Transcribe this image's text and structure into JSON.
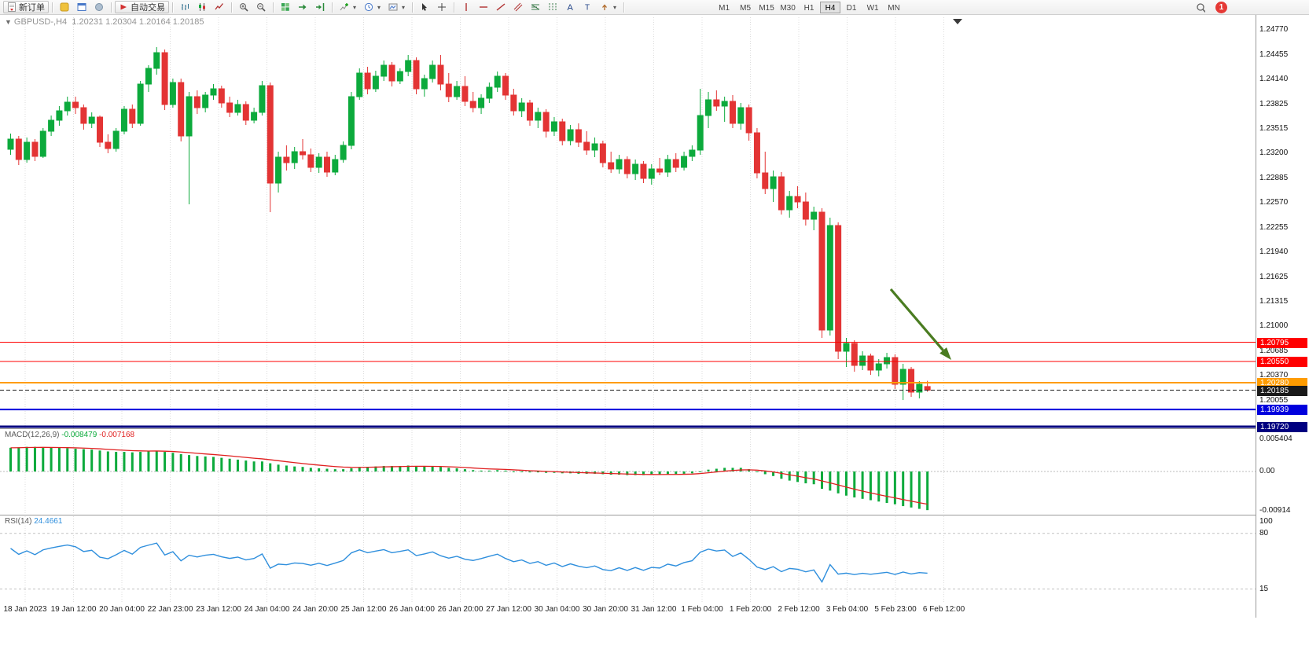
{
  "toolbar": {
    "new_order_label": "新订单",
    "autotrading_label": "自动交易",
    "timeframes": [
      "M1",
      "M5",
      "M15",
      "M30",
      "H1",
      "H4",
      "D1",
      "W1",
      "MN"
    ],
    "active_timeframe": "H4",
    "notification_count": "1"
  },
  "chart_header": {
    "one_click_arrow": "▼",
    "title": "GBPUSD-,H4",
    "ohlc": "1.20231 1.20304 1.20164 1.20185"
  },
  "colors": {
    "bull": "#0caa3c",
    "bear": "#e33434",
    "macd_histogram": "#0caa3c",
    "macd_signal": "#e02020",
    "rsi_line": "#2f8fdd",
    "grid": "#dcdcdc",
    "arrow": "#4a7c21"
  },
  "chart_data": {
    "type": "candlestick",
    "symbol": "GBPUSD-",
    "timeframe": "H4",
    "ohlc_display": {
      "open": "1.20231",
      "high": "1.20304",
      "low": "1.20164",
      "close": "1.20185"
    },
    "y_axis_labels": [
      "1.24770",
      "1.24455",
      "1.24140",
      "1.23825",
      "1.23515",
      "1.23200",
      "1.22885",
      "1.22570",
      "1.22255",
      "1.21940",
      "1.21625",
      "1.21315",
      "1.21000",
      "1.20685",
      "1.20370",
      "1.20055"
    ],
    "x_axis_labels": [
      "18 Jan 2023",
      "19 Jan 12:00",
      "20 Jan 04:00",
      "22 Jan 23:00",
      "23 Jan 12:00",
      "24 Jan 04:00",
      "24 Jan 20:00",
      "25 Jan 12:00",
      "26 Jan 04:00",
      "26 Jan 20:00",
      "27 Jan 12:00",
      "30 Jan 04:00",
      "30 Jan 20:00",
      "31 Jan 12:00",
      "1 Feb 04:00",
      "1 Feb 20:00",
      "2 Feb 12:00",
      "3 Feb 04:00",
      "5 Feb 23:00",
      "6 Feb 12:00"
    ],
    "price_lines": [
      {
        "price": 1.20795,
        "label": "1.20795",
        "color": "#ff0000",
        "style": "solid",
        "width": 1
      },
      {
        "price": 1.2055,
        "label": "1.20550",
        "color": "#ff0000",
        "style": "solid",
        "width": 1
      },
      {
        "price": 1.2028,
        "label": "1.20280",
        "color": "#ff9c00",
        "style": "solid",
        "width": 2
      },
      {
        "price": 1.20185,
        "label": "1.20185",
        "color": "#1a1a1a",
        "style": "dashed",
        "width": 1
      },
      {
        "price": 1.19939,
        "label": "1.19939",
        "color": "#0000dd",
        "style": "solid",
        "width": 2
      },
      {
        "price": 1.1972,
        "label": "1.19720",
        "color": "#000080",
        "style": "solid",
        "width": 3
      }
    ],
    "candles": [
      [
        1.2325,
        1.2345,
        1.2318,
        1.2338
      ],
      [
        1.2338,
        1.2342,
        1.2305,
        1.2312
      ],
      [
        1.2312,
        1.234,
        1.2308,
        1.2334
      ],
      [
        1.2334,
        1.2338,
        1.231,
        1.2316
      ],
      [
        1.2316,
        1.2352,
        1.2314,
        1.2348
      ],
      [
        1.2348,
        1.2368,
        1.2342,
        1.2362
      ],
      [
        1.2362,
        1.238,
        1.2355,
        1.2374
      ],
      [
        1.2374,
        1.2392,
        1.2368,
        1.2385
      ],
      [
        1.2385,
        1.2392,
        1.237,
        1.2378
      ],
      [
        1.2378,
        1.2382,
        1.235,
        1.2358
      ],
      [
        1.2358,
        1.2372,
        1.2352,
        1.2366
      ],
      [
        1.2366,
        1.2368,
        1.2328,
        1.2334
      ],
      [
        1.2334,
        1.2344,
        1.232,
        1.2326
      ],
      [
        1.2326,
        1.2352,
        1.2322,
        1.2348
      ],
      [
        1.2348,
        1.238,
        1.2344,
        1.2376
      ],
      [
        1.2376,
        1.2382,
        1.2352,
        1.2358
      ],
      [
        1.2358,
        1.2412,
        1.2355,
        1.2408
      ],
      [
        1.2408,
        1.2432,
        1.2398,
        1.2428
      ],
      [
        1.2428,
        1.2455,
        1.242,
        1.2448
      ],
      [
        1.2448,
        1.2452,
        1.2375,
        1.2382
      ],
      [
        1.2382,
        1.2415,
        1.2378,
        1.241
      ],
      [
        1.241,
        1.2415,
        1.2335,
        1.2342
      ],
      [
        1.2342,
        1.2398,
        1.2255,
        1.2392
      ],
      [
        1.2392,
        1.24,
        1.237,
        1.2378
      ],
      [
        1.2378,
        1.2398,
        1.2372,
        1.2394
      ],
      [
        1.2394,
        1.2408,
        1.2388,
        1.2402
      ],
      [
        1.2402,
        1.2406,
        1.2378,
        1.2384
      ],
      [
        1.2384,
        1.2392,
        1.2366,
        1.2372
      ],
      [
        1.2372,
        1.2388,
        1.2368,
        1.2382
      ],
      [
        1.2382,
        1.2386,
        1.2356,
        1.2362
      ],
      [
        1.2362,
        1.2378,
        1.2358,
        1.2372
      ],
      [
        1.2372,
        1.2412,
        1.2368,
        1.2406
      ],
      [
        1.2406,
        1.241,
        1.2245,
        1.2282
      ],
      [
        1.2282,
        1.2322,
        1.227,
        1.2315
      ],
      [
        1.2315,
        1.233,
        1.2298,
        1.2308
      ],
      [
        1.2308,
        1.2328,
        1.23,
        1.2322
      ],
      [
        1.2322,
        1.2338,
        1.2312,
        1.2318
      ],
      [
        1.2318,
        1.2326,
        1.2296,
        1.2302
      ],
      [
        1.2302,
        1.232,
        1.2295,
        1.2315
      ],
      [
        1.2315,
        1.2322,
        1.229,
        1.2296
      ],
      [
        1.2296,
        1.2318,
        1.2292,
        1.2312
      ],
      [
        1.2312,
        1.2335,
        1.2308,
        1.233
      ],
      [
        1.233,
        1.2398,
        1.2325,
        1.2392
      ],
      [
        1.2392,
        1.2428,
        1.2388,
        1.2422
      ],
      [
        1.2422,
        1.243,
        1.2395,
        1.2402
      ],
      [
        1.2402,
        1.2425,
        1.2398,
        1.2418
      ],
      [
        1.2418,
        1.2438,
        1.2412,
        1.2432
      ],
      [
        1.2432,
        1.2436,
        1.2405,
        1.2412
      ],
      [
        1.2412,
        1.2428,
        1.2408,
        1.2424
      ],
      [
        1.2424,
        1.2445,
        1.2418,
        1.2438
      ],
      [
        1.2438,
        1.2442,
        1.2395,
        1.2402
      ],
      [
        1.2402,
        1.242,
        1.2392,
        1.2415
      ],
      [
        1.2415,
        1.2438,
        1.241,
        1.2432
      ],
      [
        1.2432,
        1.2445,
        1.24,
        1.2408
      ],
      [
        1.2408,
        1.2422,
        1.2385,
        1.2392
      ],
      [
        1.2392,
        1.2412,
        1.2388,
        1.2405
      ],
      [
        1.2405,
        1.2418,
        1.238,
        1.2386
      ],
      [
        1.2386,
        1.2398,
        1.2372,
        1.2378
      ],
      [
        1.2378,
        1.2395,
        1.237,
        1.239
      ],
      [
        1.239,
        1.241,
        1.2384,
        1.2404
      ],
      [
        1.2404,
        1.2424,
        1.2398,
        1.2418
      ],
      [
        1.2418,
        1.2422,
        1.2388,
        1.2394
      ],
      [
        1.2394,
        1.2402,
        1.2368,
        1.2374
      ],
      [
        1.2374,
        1.239,
        1.2366,
        1.2384
      ],
      [
        1.2384,
        1.2388,
        1.2355,
        1.2362
      ],
      [
        1.2362,
        1.2378,
        1.2352,
        1.2372
      ],
      [
        1.2372,
        1.2376,
        1.234,
        1.2348
      ],
      [
        1.2348,
        1.2366,
        1.2342,
        1.236
      ],
      [
        1.236,
        1.2364,
        1.233,
        1.2336
      ],
      [
        1.2336,
        1.2356,
        1.233,
        1.235
      ],
      [
        1.235,
        1.2358,
        1.2328,
        1.2334
      ],
      [
        1.2334,
        1.2348,
        1.2318,
        1.2324
      ],
      [
        1.2324,
        1.234,
        1.2315,
        1.2332
      ],
      [
        1.2332,
        1.2336,
        1.2302,
        1.2308
      ],
      [
        1.2308,
        1.2322,
        1.2295,
        1.23
      ],
      [
        1.23,
        1.2318,
        1.2294,
        1.2312
      ],
      [
        1.2312,
        1.2316,
        1.2288,
        1.2294
      ],
      [
        1.2294,
        1.2312,
        1.2286,
        1.2306
      ],
      [
        1.2306,
        1.231,
        1.2282,
        1.2288
      ],
      [
        1.2288,
        1.2306,
        1.228,
        1.23
      ],
      [
        1.23,
        1.2314,
        1.2292,
        1.2296
      ],
      [
        1.2296,
        1.2318,
        1.229,
        1.2312
      ],
      [
        1.2312,
        1.232,
        1.2296,
        1.2302
      ],
      [
        1.2302,
        1.2322,
        1.2298,
        1.2316
      ],
      [
        1.2316,
        1.233,
        1.231,
        1.2324
      ],
      [
        1.2324,
        1.2402,
        1.2318,
        1.2368
      ],
      [
        1.2368,
        1.2398,
        1.2352,
        1.2388
      ],
      [
        1.2388,
        1.24,
        1.2374,
        1.238
      ],
      [
        1.238,
        1.2392,
        1.236,
        1.2386
      ],
      [
        1.2386,
        1.2394,
        1.2352,
        1.2358
      ],
      [
        1.2358,
        1.2384,
        1.235,
        1.2378
      ],
      [
        1.2378,
        1.2382,
        1.2336,
        1.2346
      ],
      [
        1.2346,
        1.2352,
        1.2288,
        1.2295
      ],
      [
        1.2295,
        1.2322,
        1.2268,
        1.2275
      ],
      [
        1.2275,
        1.2298,
        1.2258,
        1.229
      ],
      [
        1.229,
        1.2296,
        1.2242,
        1.2248
      ],
      [
        1.2248,
        1.2272,
        1.2238,
        1.2265
      ],
      [
        1.2265,
        1.2278,
        1.225,
        1.2258
      ],
      [
        1.2258,
        1.227,
        1.2228,
        1.2236
      ],
      [
        1.2236,
        1.2252,
        1.2222,
        1.2245
      ],
      [
        1.2245,
        1.225,
        1.2085,
        1.2095
      ],
      [
        1.2095,
        1.2238,
        1.2088,
        1.2228
      ],
      [
        1.2228,
        1.2232,
        1.2058,
        1.2068
      ],
      [
        1.2068,
        1.2085,
        1.2048,
        1.2078
      ],
      [
        1.2078,
        1.2082,
        1.2042,
        1.205
      ],
      [
        1.205,
        1.2068,
        1.2044,
        1.2062
      ],
      [
        1.2062,
        1.2065,
        1.2038,
        1.2044
      ],
      [
        1.2044,
        1.2058,
        1.2036,
        1.2052
      ],
      [
        1.2052,
        1.2066,
        1.2046,
        1.206
      ],
      [
        1.206,
        1.2064,
        1.202,
        1.2026
      ],
      [
        1.2026,
        1.2052,
        1.2006,
        1.2045
      ],
      [
        1.2045,
        1.2048,
        1.201,
        1.2016
      ],
      [
        1.2016,
        1.203,
        1.2008,
        1.2026
      ],
      [
        1.20231,
        1.20304,
        1.20164,
        1.20185
      ]
    ],
    "macd": {
      "label": "MACD(12,26,9)",
      "value": "-0.008479",
      "signal_value": "-0.007168",
      "axis_labels": [
        "0.005404",
        "0.00",
        "-0.00914"
      ],
      "values": [
        0.0052,
        0.0053,
        0.0054,
        0.0054,
        0.0053,
        0.0052,
        0.0052,
        0.0051,
        0.005,
        0.0049,
        0.0048,
        0.0046,
        0.0044,
        0.0043,
        0.0043,
        0.0042,
        0.0043,
        0.0044,
        0.0045,
        0.0043,
        0.0041,
        0.0038,
        0.0036,
        0.0034,
        0.0033,
        0.0032,
        0.003,
        0.0028,
        0.0026,
        0.0024,
        0.0022,
        0.0022,
        0.0018,
        0.0015,
        0.0013,
        0.0011,
        0.001,
        0.0008,
        0.0007,
        0.0006,
        0.0005,
        0.0005,
        0.0007,
        0.0009,
        0.001,
        0.0011,
        0.0012,
        0.0012,
        0.0012,
        0.0013,
        0.0012,
        0.0011,
        0.0011,
        0.001,
        0.0008,
        0.0007,
        0.0005,
        0.0003,
        0.0002,
        0.0002,
        0.0003,
        0.0002,
        0.0,
        -0.0001,
        -0.0002,
        -0.0002,
        -0.0003,
        -0.0003,
        -0.0004,
        -0.0004,
        -0.0005,
        -0.0005,
        -0.0005,
        -0.0006,
        -0.0007,
        -0.0007,
        -0.0008,
        -0.0008,
        -0.0008,
        -0.0007,
        -0.0007,
        -0.0006,
        -0.0006,
        -0.0005,
        -0.0004,
        0.0,
        0.0004,
        0.0006,
        0.0008,
        0.0008,
        0.0008,
        0.0005,
        0.0,
        -0.0006,
        -0.001,
        -0.0016,
        -0.002,
        -0.0023,
        -0.0026,
        -0.0028,
        -0.0038,
        -0.0042,
        -0.0048,
        -0.0053,
        -0.0057,
        -0.006,
        -0.0063,
        -0.0066,
        -0.0069,
        -0.0072,
        -0.0076,
        -0.0079,
        -0.0082,
        -0.008479
      ]
    },
    "rsi": {
      "label": "RSI(14)",
      "value": "24.4661",
      "levels": [
        80,
        15
      ],
      "axis_labels": [
        "100",
        "80",
        "15"
      ]
    },
    "annotation_arrow": {
      "from": [
        1133,
        368
      ],
      "to": [
        1210,
        458
      ],
      "color": "#4a7c21"
    }
  }
}
